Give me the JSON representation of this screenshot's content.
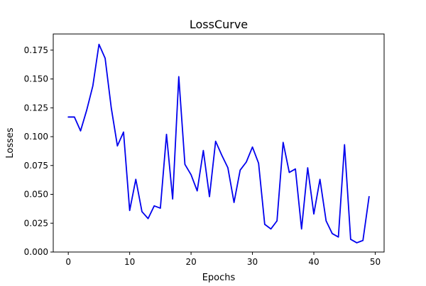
{
  "chart_data": {
    "type": "line",
    "title": "LossCurve",
    "xlabel": "Epochs",
    "ylabel": "Losses",
    "xlim": [
      -2.45,
      51.45
    ],
    "ylim": [
      0,
      0.189
    ],
    "xticks": [
      0,
      10,
      20,
      30,
      40,
      50
    ],
    "xtick_labels": [
      "0",
      "10",
      "20",
      "30",
      "40",
      "50"
    ],
    "yticks": [
      0.0,
      0.025,
      0.05,
      0.075,
      0.1,
      0.125,
      0.15,
      0.175
    ],
    "ytick_labels": [
      "0.000",
      "0.025",
      "0.050",
      "0.075",
      "0.100",
      "0.125",
      "0.150",
      "0.175"
    ],
    "grid": false,
    "series": [
      {
        "color": "#0000ee",
        "x": [
          0,
          1,
          2,
          3,
          4,
          5,
          6,
          7,
          8,
          9,
          10,
          11,
          12,
          13,
          14,
          15,
          16,
          17,
          18,
          19,
          20,
          21,
          22,
          23,
          24,
          25,
          26,
          27,
          28,
          29,
          30,
          31,
          32,
          33,
          34,
          35,
          36,
          37,
          38,
          39,
          40,
          41,
          42,
          43,
          44,
          45,
          46,
          47,
          48,
          49
        ],
        "values": [
          0.117,
          0.117,
          0.105,
          0.123,
          0.144,
          0.18,
          0.168,
          0.125,
          0.092,
          0.104,
          0.036,
          0.063,
          0.035,
          0.029,
          0.04,
          0.038,
          0.102,
          0.046,
          0.152,
          0.076,
          0.067,
          0.053,
          0.088,
          0.048,
          0.096,
          0.084,
          0.073,
          0.043,
          0.071,
          0.078,
          0.091,
          0.077,
          0.024,
          0.02,
          0.027,
          0.095,
          0.069,
          0.072,
          0.02,
          0.073,
          0.033,
          0.063,
          0.027,
          0.016,
          0.013,
          0.093,
          0.011,
          0.008,
          0.01,
          0.048
        ]
      }
    ]
  }
}
